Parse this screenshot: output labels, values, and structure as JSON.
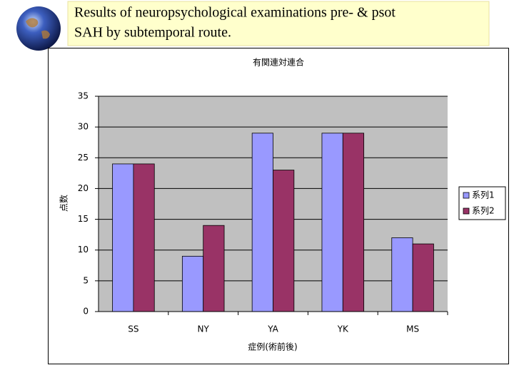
{
  "slide_title": "Results of neuropsychological examinations pre- & psot SAH by subtemporal route.",
  "chart_data": {
    "type": "bar",
    "title": "有関連対連合",
    "x_label": "症例(術前後)",
    "y_label": "点数",
    "categories": [
      "SS",
      "NY",
      "YA",
      "YK",
      "MS"
    ],
    "series": [
      {
        "name": "系列1",
        "color": "#9999ff",
        "values": [
          24,
          9,
          29,
          29,
          12
        ]
      },
      {
        "name": "系列2",
        "color": "#993366",
        "values": [
          24,
          14,
          23,
          29,
          11
        ]
      }
    ],
    "ylim": [
      0,
      35
    ],
    "yticks": [
      0,
      5,
      10,
      15,
      20,
      25,
      30,
      35
    ],
    "grid": true,
    "legend": "right"
  }
}
